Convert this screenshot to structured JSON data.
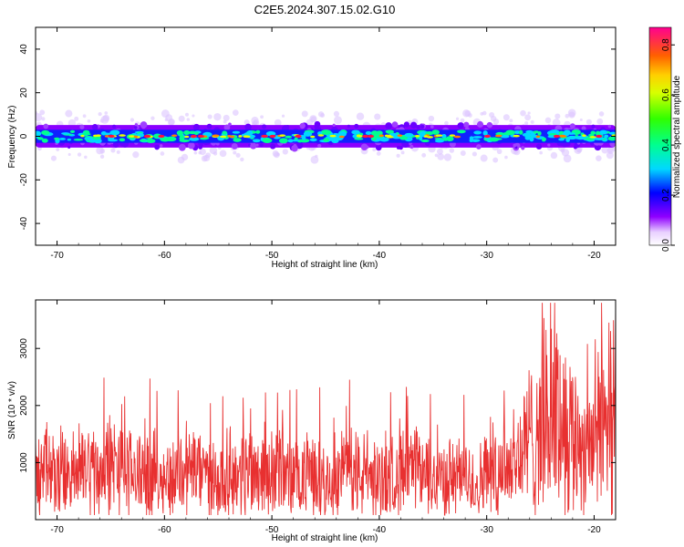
{
  "title": "C2E5.2024.307.15.02.G10",
  "chart_data": [
    {
      "type": "heatmap",
      "xlabel": "Height of straight line (km)",
      "ylabel": "Frequency (Hz)",
      "xlim": [
        -72,
        -18
      ],
      "ylim": [
        -50,
        50
      ],
      "x_ticks": [
        -70,
        -60,
        -50,
        -40,
        -30,
        -20
      ],
      "y_ticks": [
        -40,
        -20,
        0,
        20,
        40
      ],
      "band": {
        "center_hz": 0,
        "half_width_hz": 4,
        "peak_amplitude": 0.9
      },
      "colorbar": {
        "label": "Normalized spectral amplitude",
        "range": [
          0,
          0.87
        ],
        "ticks": [
          0.0,
          0.2,
          0.4,
          0.6,
          0.8
        ]
      }
    },
    {
      "type": "line",
      "xlabel": "Height of straight line (km)",
      "ylabel": "SNR (10 * v/v)",
      "xlim": [
        -72,
        -18
      ],
      "ylim": [
        0,
        3850
      ],
      "x_ticks": [
        -70,
        -60,
        -50,
        -40,
        -30,
        -20
      ],
      "y_ticks": [
        1000,
        2000,
        3000
      ],
      "color": "#e83030",
      "series": [
        {
          "x": [
            -72,
            -71,
            -70,
            -69,
            -68,
            -67,
            -66,
            -65,
            -64,
            -63,
            -62,
            -61,
            -60,
            -59,
            -58,
            -57,
            -56,
            -55,
            -54,
            -53,
            -52,
            -51,
            -50,
            -49,
            -48,
            -47,
            -46,
            -45,
            -44,
            -43,
            -42,
            -41,
            -40,
            -39,
            -38,
            -37,
            -36,
            -35,
            -34,
            -33,
            -32,
            -31,
            -30,
            -29,
            -28,
            -27,
            -26,
            -25,
            -24,
            -23,
            -22,
            -21,
            -20,
            -19,
            -18
          ],
          "y": [
            750,
            800,
            850,
            750,
            800,
            900,
            850,
            950,
            850,
            800,
            850,
            800,
            700,
            750,
            950,
            850,
            750,
            700,
            800,
            750,
            900,
            850,
            800,
            850,
            700,
            750,
            800,
            700,
            800,
            850,
            800,
            750,
            700,
            750,
            900,
            850,
            800,
            750,
            700,
            750,
            700,
            650,
            750,
            900,
            1000,
            1100,
            1400,
            1700,
            1900,
            1800,
            1500,
            1300,
            1500,
            1700,
            2400
          ]
        }
      ]
    }
  ]
}
